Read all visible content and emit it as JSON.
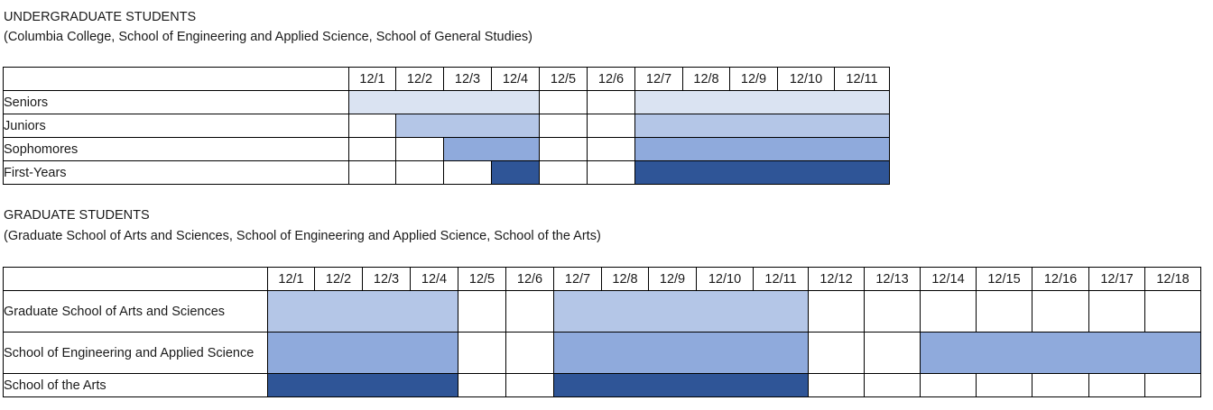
{
  "colors": {
    "c1": "#dae3f2",
    "c2": "#b4c6e7",
    "c3": "#8faadc",
    "c4": "#2f5597"
  },
  "undergraduate": {
    "title": "UNDERGRADUATE STUDENTS",
    "subtitle": "(Columbia College, School of Engineering and Applied Science, School of General Studies)",
    "dates": [
      "12/1",
      "12/2",
      "12/3",
      "12/4",
      "12/5",
      "12/6",
      "12/7",
      "12/8",
      "12/9",
      "12/10",
      "12/11"
    ],
    "rows": [
      {
        "label": "Seniors",
        "color": "c1",
        "spans": [
          [
            0,
            3
          ],
          [
            6,
            10
          ]
        ]
      },
      {
        "label": "Juniors",
        "color": "c2",
        "spans": [
          [
            1,
            3
          ],
          [
            6,
            10
          ]
        ]
      },
      {
        "label": "Sophomores",
        "color": "c3",
        "spans": [
          [
            2,
            3
          ],
          [
            6,
            10
          ]
        ]
      },
      {
        "label": "First-Years",
        "color": "c4",
        "spans": [
          [
            3,
            3
          ],
          [
            6,
            10
          ]
        ]
      }
    ]
  },
  "graduate": {
    "title": "GRADUATE STUDENTS",
    "subtitle": "(Graduate School of Arts and Sciences, School of Engineering and Applied Science, School of the Arts)",
    "dates": [
      "12/1",
      "12/2",
      "12/3",
      "12/4",
      "12/5",
      "12/6",
      "12/7",
      "12/8",
      "12/9",
      "12/10",
      "12/11",
      "12/12",
      "12/13",
      "12/14",
      "12/15",
      "12/16",
      "12/17",
      "12/18"
    ],
    "rows": [
      {
        "label": "Graduate School of Arts and Sciences",
        "color": "c2",
        "spans": [
          [
            0,
            3
          ],
          [
            6,
            10
          ]
        ]
      },
      {
        "label": "School of Engineering and Applied Science",
        "color": "c3",
        "spans": [
          [
            0,
            3
          ],
          [
            6,
            10
          ],
          [
            13,
            17
          ]
        ]
      },
      {
        "label": "School of the Arts",
        "color": "c4",
        "spans": [
          [
            0,
            3
          ],
          [
            6,
            10
          ]
        ]
      }
    ]
  }
}
